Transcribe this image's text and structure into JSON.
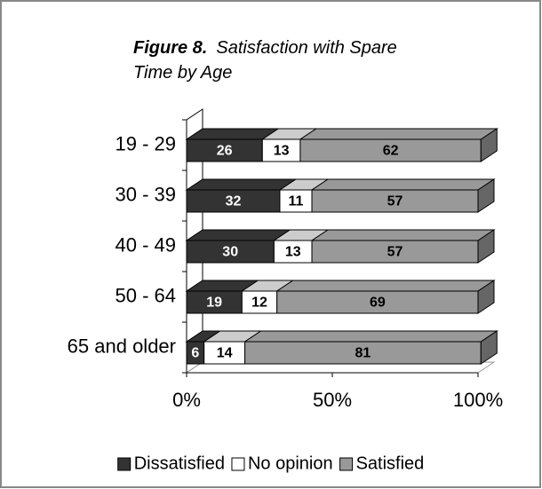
{
  "chart_data": {
    "type": "bar3d_stacked_horizontal",
    "title": "Figure 8.",
    "subtitle": "Satisfaction with Spare Time by Age",
    "categories": [
      "19 - 29",
      "30 - 39",
      "40 - 49",
      "50 - 64",
      "65 and older"
    ],
    "series": [
      {
        "name": "Dissatisfied",
        "color": "#333333",
        "label_color": "#ffffff",
        "values": [
          26,
          32,
          30,
          19,
          6
        ]
      },
      {
        "name": "No opinion",
        "color": "#ffffff",
        "label_color": "#000000",
        "values": [
          13,
          11,
          13,
          12,
          14
        ]
      },
      {
        "name": "Satisfied",
        "color": "#999999",
        "label_color": "#000000",
        "values": [
          62,
          57,
          57,
          69,
          81
        ]
      }
    ],
    "xlim": [
      0,
      100
    ],
    "xticks": [
      {
        "value": 0,
        "label": "0%"
      },
      {
        "value": 50,
        "label": "50%"
      },
      {
        "value": 100,
        "label": "100%"
      }
    ],
    "legend": "bottom"
  }
}
